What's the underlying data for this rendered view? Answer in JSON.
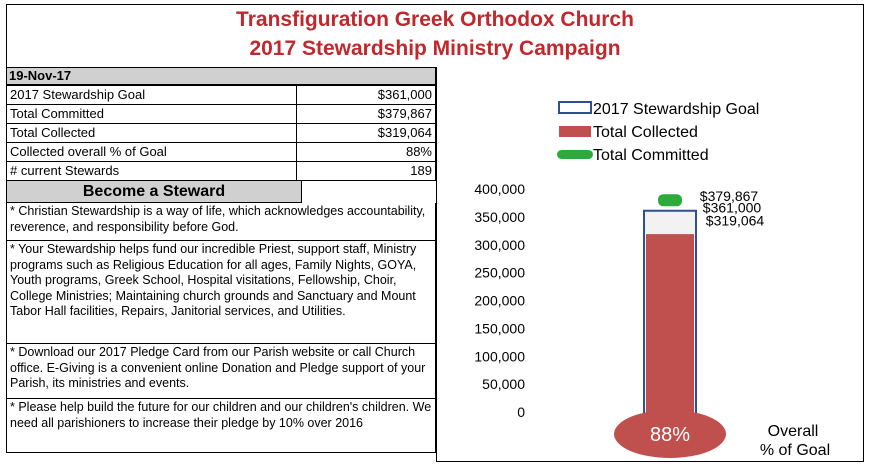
{
  "header": {
    "title_line1": "Transfiguration Greek Orthodox Church",
    "title_line2": "2017 Stewardship Ministry Campaign"
  },
  "date": "19-Nov-17",
  "stats": [
    {
      "label": "2017 Stewardship Goal",
      "value": "$361,000"
    },
    {
      "label": "Total Committed",
      "value": "$379,867"
    },
    {
      "label": "Total Collected",
      "value": "$319,064"
    },
    {
      "label": "Collected overall % of Goal",
      "value": "88%"
    },
    {
      "label": "# current Stewards",
      "value": "189"
    }
  ],
  "become_steward": {
    "heading": "Become a Steward",
    "paragraphs": [
      "* Christian Stewardship is a way of life, which acknowledges accountability, reverence, and responsibility before God.",
      "* Your Stewardship helps fund our incredible Priest, support staff, Ministry programs such as Religious Education for all ages, Family Nights, GOYA, Youth programs, Greek School, Hospital visitations, Fellowship, Choir, College Ministries; Maintaining church grounds and Sanctuary and Mount Tabor Hall facilities, Repairs, Janitorial services, and Utilities.",
      "* Download our 2017 Pledge Card from our Parish website or call Church office.  E-Giving is a convenient online Donation and Pledge support of your Parish, its ministries and events.",
      "* Please help build the future for our children and our children's children. We need all parishioners to increase their pledge by 10% over 2016"
    ]
  },
  "chart_data": {
    "type": "bar",
    "series": [
      {
        "name": "2017 Stewardship Goal",
        "value": 361000,
        "label": "$361,000",
        "style": "outline",
        "color": "#2f4f8f"
      },
      {
        "name": "Total Collected",
        "value": 319064,
        "label": "$319,064",
        "style": "fill",
        "color": "#c0504d"
      },
      {
        "name": "Total Committed",
        "value": 379867,
        "label": "$379,867",
        "style": "marker",
        "color": "#2eaa3c"
      }
    ],
    "ylim": [
      0,
      400000
    ],
    "yticks": [
      "400,000",
      "350,000",
      "300,000",
      "250,000",
      "200,000",
      "150,000",
      "100,000",
      "50,000",
      "0"
    ],
    "legend_position": "top",
    "thermometer_bulb": {
      "percent": 0.88,
      "label": "88%",
      "color": "#c0504d"
    },
    "bulb_caption_line1": "Overall",
    "bulb_caption_line2": "% of Goal"
  }
}
